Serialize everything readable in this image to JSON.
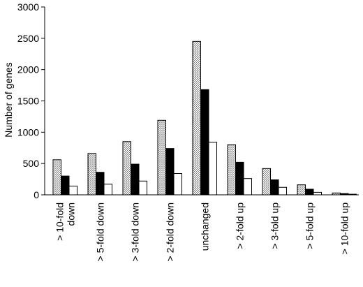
{
  "chart_data": {
    "type": "bar",
    "title": "",
    "xlabel": "",
    "ylabel": "Number of genes",
    "ylim": [
      0,
      3000
    ],
    "yticks": [
      0,
      500,
      1000,
      1500,
      2000,
      2500,
      3000
    ],
    "categories": [
      [
        "> 10-fold",
        "down"
      ],
      [
        "> 5-fold down"
      ],
      [
        "> 3-fold down"
      ],
      [
        "> 2-fold down"
      ],
      [
        "unchanged"
      ],
      [
        "> 2-fold up"
      ],
      [
        "> 3-fold up"
      ],
      [
        "> 5-fold up"
      ],
      [
        "> 10-fold up"
      ]
    ],
    "series": [
      {
        "fill": "dotted",
        "color": "#d9d9d9",
        "values": [
          560,
          660,
          850,
          1190,
          2450,
          800,
          420,
          160,
          30
        ]
      },
      {
        "fill": "solid",
        "color": "#000000",
        "values": [
          300,
          360,
          490,
          740,
          1680,
          520,
          240,
          90,
          20
        ]
      },
      {
        "fill": "hollow",
        "color": "#ffffff",
        "values": [
          140,
          170,
          220,
          340,
          840,
          260,
          120,
          40,
          10
        ]
      }
    ],
    "grid": false,
    "legend": "none"
  }
}
